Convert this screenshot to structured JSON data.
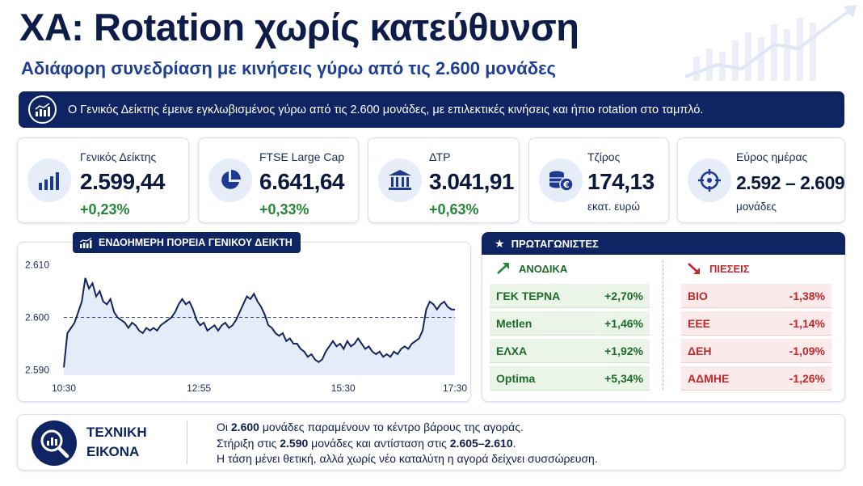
{
  "header": {
    "title": "ΧΑ: Rotation χωρίς κατεύθυνση",
    "subtitle": "Αδιάφορη συνεδρίαση με κινήσεις γύρω από τις 2.600 μονάδες"
  },
  "banner": {
    "text": "Ο Γενικός Δείκτης έμεινε εγκλωβισμένος γύρω από τις 2.600 μονάδες, με επιλεκτικές κινήσεις και ήπιο rotation στο ταμπλό.",
    "icon": "chart-up-icon"
  },
  "cards": [
    {
      "label": "Γενικός Δείκτης",
      "value": "2.599,44",
      "change": "+0,23%",
      "icon": "bar-chart-icon"
    },
    {
      "label": "FTSE Large Cap",
      "value": "6.641,64",
      "change": "+0,33%",
      "icon": "pie-chart-icon"
    },
    {
      "label": "ΔΤΡ",
      "value": "3.041,91",
      "change": "+0,63%",
      "icon": "bank-icon"
    },
    {
      "label": "Τζίρος",
      "value": "174,13",
      "unit": "εκατ. ευρώ",
      "icon": "coins-euro-icon"
    },
    {
      "label": "Εύρος ημέρας",
      "value": "2.592 – 2.609",
      "unit": "μονάδες",
      "icon": "target-icon"
    }
  ],
  "colors": {
    "navy": "#0f2463",
    "green": "#25883a",
    "red": "#c0282b",
    "line": "#14245e",
    "fill": "#dbe4f7"
  },
  "chart_data": {
    "type": "area",
    "title": "ΕΝΔΟΗΜΕΡΗ ΠΟΡΕΙΑ ΓΕΝΙΚΟΥ ΔΕΙΚΤΗ",
    "x_ticks": [
      "10:30",
      "12:55",
      "15:30",
      "17:30"
    ],
    "y_ticks": [
      "2.610",
      "2.600",
      "2.590"
    ],
    "ylim": [
      2589,
      2611
    ],
    "reference_line": 2600,
    "x_start_min": 630,
    "x_end_min": 1050,
    "series": [
      {
        "values": [
          2590.5,
          2597,
          2598,
          2599,
          2601,
          2603,
          2607.5,
          2605.5,
          2606.5,
          2604,
          2605,
          2603,
          2602.5,
          2603.5,
          2601,
          2600,
          2599.5,
          2599,
          2598,
          2599,
          2598.5,
          2597.5,
          2597,
          2598,
          2597.5,
          2598,
          2597.5,
          2598.5,
          2599,
          2599.5,
          2600,
          2601,
          2602.5,
          2603.5,
          2602.5,
          2603,
          2601.5,
          2599.5,
          2598.5,
          2599,
          2597.5,
          2598,
          2598.5,
          2597.5,
          2598.5,
          2599,
          2598,
          2598.5,
          2599.5,
          2601,
          2602.5,
          2604,
          2603.5,
          2604.5,
          2603,
          2602,
          2600.5,
          2598.5,
          2598,
          2597,
          2596.5,
          2597,
          2595.5,
          2596,
          2595,
          2595,
          2594,
          2593.5,
          2592.5,
          2593,
          2592,
          2591.5,
          2592,
          2593.5,
          2594.5,
          2595.5,
          2594.5,
          2595,
          2594,
          2595.5,
          2594.5,
          2595,
          2596,
          2595,
          2594,
          2594.5,
          2593.5,
          2593,
          2593.5,
          2592.5,
          2593,
          2592.5,
          2593.5,
          2593,
          2594,
          2594.5,
          2594,
          2595,
          2595.5,
          2596,
          2597.5,
          2601.5,
          2603,
          2602.5,
          2601.5,
          2602.5,
          2603,
          2602,
          2601.5,
          2601.5
        ]
      }
    ]
  },
  "movers": {
    "title": "ΠΡΩΤΑΓΩΝΙΣΤΕΣ",
    "up_title": "ΑΝΟΔΙΚΑ",
    "down_title": "ΠΙΕΣΕΙΣ",
    "up": [
      {
        "name": "ΓΕΚ ΤΕΡΝΑ",
        "change": "+2,70%"
      },
      {
        "name": "Metlen",
        "change": "+1,46%"
      },
      {
        "name": "ΕΛΧΑ",
        "change": "+1,92%"
      },
      {
        "name": "Optima",
        "change": "+5,34%"
      }
    ],
    "down": [
      {
        "name": "ΒΙΟ",
        "change": "-1,38%"
      },
      {
        "name": "ΕΕΕ",
        "change": "-1,14%"
      },
      {
        "name": "ΔΕΗ",
        "change": "-1,09%"
      },
      {
        "name": "ΑΔΜΗΕ",
        "change": "-1,26%"
      }
    ]
  },
  "technical": {
    "title_line1": "ΤΕΧΝΙΚΗ",
    "title_line2": "ΕΙΚΟΝΑ",
    "l1_a": "Οι ",
    "l1_b": "2.600",
    "l1_c": " μονάδες παραμένουν το κέντρο βάρους της αγοράς.",
    "l2_a": "Στήριξη στις ",
    "l2_b": "2.590",
    "l2_c": " μονάδες και αντίσταση στις ",
    "l2_d": "2.605–2.610",
    "l2_e": ".",
    "l3": "Η τάση μένει θετική, αλλά χωρίς νέο καταλύτη η αγορά δείχνει συσσώρευση."
  }
}
